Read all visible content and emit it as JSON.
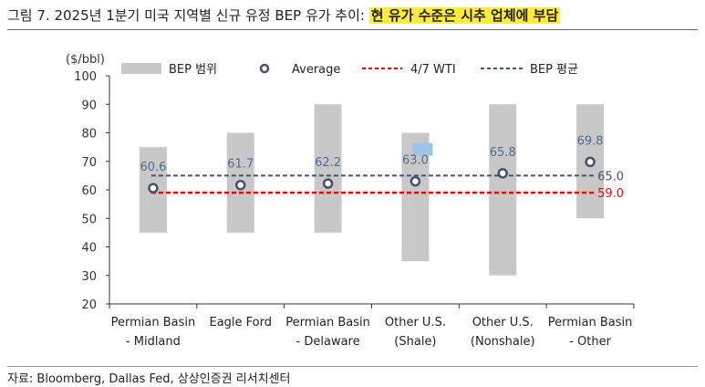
{
  "header": {
    "title_prefix": "그림 7. 2025년 1분기 미국 지역별 신규 유정 BEP 유가 추이: ",
    "title_highlight": "현 유가 수준은 시추 업체에 부담"
  },
  "footer": {
    "source": "자료: Bloomberg, Dallas Fed, 상상인증권 리서치센터"
  },
  "chart_data": {
    "type": "bar",
    "unit_label": "($/bbl)",
    "ylim": [
      20,
      100
    ],
    "yticks": [
      20,
      30,
      40,
      50,
      60,
      70,
      80,
      90,
      100
    ],
    "categories": [
      [
        "Permian Basin",
        "- Midland"
      ],
      [
        "Eagle Ford"
      ],
      [
        "Permian Basin",
        "- Delaware"
      ],
      [
        "Other U.S.",
        "(Shale)"
      ],
      [
        "Other U.S.",
        "(Nonshale)"
      ],
      [
        "Permian Basin",
        "- Other"
      ]
    ],
    "ranges": [
      [
        45,
        75
      ],
      [
        45,
        80
      ],
      [
        45,
        90
      ],
      [
        35,
        80
      ],
      [
        30,
        90
      ],
      [
        50,
        90
      ]
    ],
    "averages": [
      60.6,
      61.7,
      62.2,
      63.0,
      65.8,
      69.8
    ],
    "average_labels": [
      "60.6",
      "61.7",
      "62.2",
      "63.0",
      "65.8",
      "69.8"
    ],
    "wti": 59.0,
    "wti_label": "59.0",
    "bep_avg": 65.0,
    "bep_avg_label": "65.0",
    "legend": {
      "range": "BEP 범위",
      "average": "Average",
      "wti": "4/7 WTI",
      "bep_avg": "BEP 평균"
    },
    "colors": {
      "range": "#c8c8c8",
      "average_fill": "#ffffff",
      "average_stroke": "#44546a",
      "label": "#4a6e8f",
      "label_highlight": "#9dc3e6",
      "wti": "#ff0000",
      "bep_avg": "#44546a",
      "axis": "#333333"
    }
  }
}
